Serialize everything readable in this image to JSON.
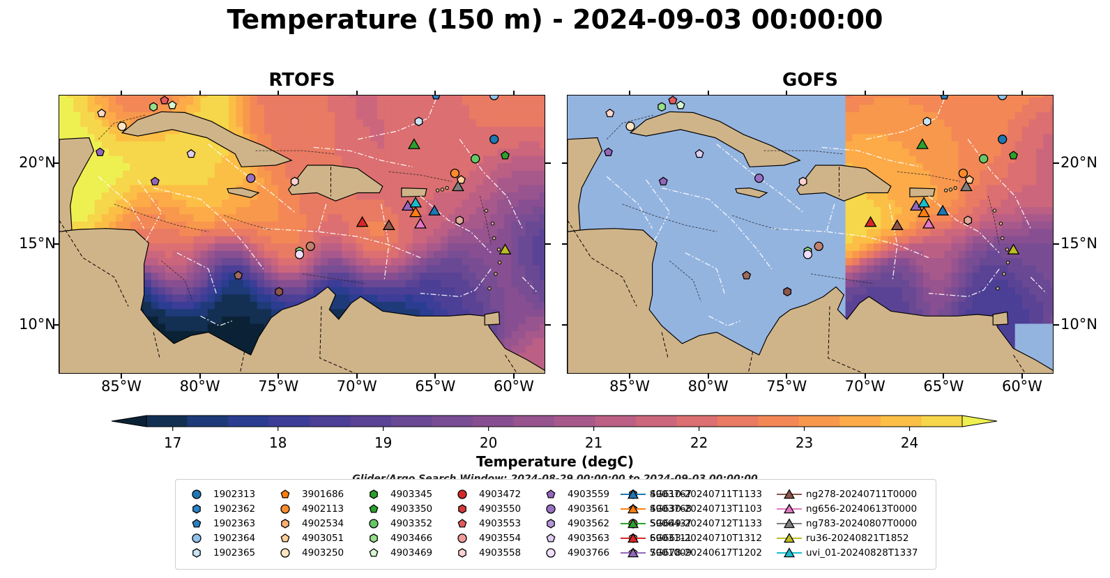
{
  "figure": {
    "title": "Temperature (150 m) - 2024-09-03 00:00:00",
    "search_window": "Glider/Argo Search Window: 2024-08-29 00:00:00 to 2024-09-03 00:00:00"
  },
  "chart_data": {
    "type": "heatmap",
    "panels": [
      {
        "title": "RTOFS",
        "xlim": [
          -89,
          -58
        ],
        "ylim": [
          7,
          24.2
        ]
      },
      {
        "title": "GOFS",
        "xlim": [
          -89,
          -58
        ],
        "ylim": [
          7,
          24.2
        ]
      }
    ],
    "x_ticks": [
      "85°W",
      "80°W",
      "75°W",
      "70°W",
      "65°W",
      "60°W"
    ],
    "x_tick_values": [
      -85,
      -80,
      -75,
      -70,
      -65,
      -60
    ],
    "y_ticks": [
      "20°N",
      "15°N",
      "10°N"
    ],
    "y_tick_values": [
      20,
      15,
      10
    ],
    "colorbar": {
      "label": "Temperature (degC)",
      "range": [
        16.75,
        24.5
      ],
      "ticks": [
        17,
        18,
        19,
        20,
        21,
        22,
        23,
        24
      ],
      "extend": "both",
      "colors": [
        "#0b2236",
        "#132f52",
        "#1e3a78",
        "#2a3d91",
        "#3c3d97",
        "#4b3f96",
        "#5a4395",
        "#694894",
        "#784d93",
        "#874f91",
        "#97548e",
        "#a8598b",
        "#bb5f85",
        "#cc667c",
        "#dc6f71",
        "#e97a63",
        "#f38856",
        "#f8984c",
        "#fcab48",
        "#fcbf46",
        "#f6d64a",
        "#eef052"
      ]
    },
    "colormap_note": "thermal",
    "land_color": "#d0b489",
    "ocean_nodata_color": "#94b4e0",
    "platforms": [
      {
        "name": "1902313",
        "marker": "circle",
        "color": "#1f77b4"
      },
      {
        "name": "1902362",
        "marker": "hexagon",
        "color": "#2a83c7"
      },
      {
        "name": "1902363",
        "marker": "pentagon",
        "color": "#2c7fbf"
      },
      {
        "name": "1902364",
        "marker": "circle",
        "color": "#8fc1ea"
      },
      {
        "name": "1902365",
        "marker": "hexagon",
        "color": "#c9e3f7"
      },
      {
        "name": "3901686",
        "marker": "pentagon",
        "color": "#ff7f0e"
      },
      {
        "name": "4902113",
        "marker": "circle",
        "color": "#ff8c2a"
      },
      {
        "name": "4902534",
        "marker": "hexagon",
        "color": "#ffb070"
      },
      {
        "name": "4903051",
        "marker": "pentagon",
        "color": "#ffcf9a"
      },
      {
        "name": "4903250",
        "marker": "circle",
        "color": "#ffe4c2"
      },
      {
        "name": "4903345",
        "marker": "hexagon",
        "color": "#2ca02c"
      },
      {
        "name": "4903350",
        "marker": "pentagon",
        "color": "#2ca02c"
      },
      {
        "name": "4903352",
        "marker": "circle",
        "color": "#67c767"
      },
      {
        "name": "4903466",
        "marker": "hexagon",
        "color": "#98df8a"
      },
      {
        "name": "4903469",
        "marker": "pentagon",
        "color": "#d8f5cf"
      },
      {
        "name": "4903472",
        "marker": "circle",
        "color": "#d62728"
      },
      {
        "name": "4903550",
        "marker": "hexagon",
        "color": "#d63a3b"
      },
      {
        "name": "4903553",
        "marker": "pentagon",
        "color": "#e35a5b"
      },
      {
        "name": "4903554",
        "marker": "circle",
        "color": "#f19a9a"
      },
      {
        "name": "4903558",
        "marker": "hexagon",
        "color": "#fcd2d2"
      },
      {
        "name": "4903559",
        "marker": "pentagon",
        "color": "#9467bd"
      },
      {
        "name": "4903561",
        "marker": "circle",
        "color": "#9a70c4"
      },
      {
        "name": "4903562",
        "marker": "hexagon",
        "color": "#b596d8"
      },
      {
        "name": "4903563",
        "marker": "pentagon",
        "color": "#e0cdf2"
      },
      {
        "name": "4903766",
        "marker": "circle",
        "color": "#f0defa"
      },
      {
        "name": "4903767",
        "marker": "hexagon",
        "color": "#8c564b"
      },
      {
        "name": "4903768",
        "marker": "pentagon",
        "color": "#a06a5c"
      },
      {
        "name": "5906437",
        "marker": "circle",
        "color": "#c0806e"
      },
      {
        "name": "6903111",
        "marker": "hexagon",
        "color": "#e0a898"
      },
      {
        "name": "7901009",
        "marker": "pentagon",
        "color": "#fcd9c9"
      }
    ],
    "gliders": [
      {
        "name": "SG610-20240711T1133",
        "color": "#1f77b4"
      },
      {
        "name": "SG630-20240713T1103",
        "color": "#ff7f0e"
      },
      {
        "name": "SG649-20240712T1133",
        "color": "#2ca02c"
      },
      {
        "name": "SG663-20240710T1312",
        "color": "#d62728"
      },
      {
        "name": "SG678-20240617T1202",
        "color": "#9467bd"
      },
      {
        "name": "ng278-20240711T0000",
        "color": "#8c564b"
      },
      {
        "name": "ng656-20240613T0000",
        "color": "#e377c2"
      },
      {
        "name": "ng783-20240807T0000",
        "color": "#7f7f7f"
      },
      {
        "name": "ru36-20240821T1852",
        "color": "#bcbd22"
      },
      {
        "name": "uvi_01-20240828T1337",
        "color": "#17becf"
      }
    ],
    "platform_positions": [
      {
        "name": "1902313",
        "lon": -61.3,
        "lat": 21.5
      },
      {
        "name": "1902364",
        "lon": -61.3,
        "lat": 24.2
      },
      {
        "name": "1902363",
        "lon": -65.0,
        "lat": 24.2
      },
      {
        "name": "1902365",
        "lon": -66.1,
        "lat": 22.6
      },
      {
        "name": "4903469",
        "lon": -81.8,
        "lat": 23.6
      },
      {
        "name": "4903466",
        "lon": -83.0,
        "lat": 23.5
      },
      {
        "name": "4903553",
        "lon": -82.3,
        "lat": 23.9
      },
      {
        "name": "7901009",
        "lon": -86.3,
        "lat": 23.1
      },
      {
        "name": "4903250",
        "lon": -85.0,
        "lat": 22.3
      },
      {
        "name": "4903559",
        "lon": -86.4,
        "lat": 20.7
      },
      {
        "name": "4903563",
        "lon": -80.6,
        "lat": 20.6
      },
      {
        "name": "4903559",
        "lon": -82.9,
        "lat": 18.9
      },
      {
        "name": "4903561",
        "lon": -76.8,
        "lat": 19.1
      },
      {
        "name": "4903558",
        "lon": -74.0,
        "lat": 18.9
      },
      {
        "name": "4903350",
        "lon": -60.6,
        "lat": 20.5
      },
      {
        "name": "4903352",
        "lon": -62.5,
        "lat": 20.3
      },
      {
        "name": "4902113",
        "lon": -63.8,
        "lat": 19.4
      },
      {
        "name": "4903051",
        "lon": -63.4,
        "lat": 19.0
      },
      {
        "name": "6903111",
        "lon": -63.5,
        "lat": 16.5
      },
      {
        "name": "4903466",
        "lon": -73.7,
        "lat": 14.6
      },
      {
        "name": "4903766",
        "lon": -73.7,
        "lat": 14.4
      },
      {
        "name": "5906437",
        "lon": -73.0,
        "lat": 14.9
      },
      {
        "name": "4903768",
        "lon": -77.6,
        "lat": 13.1
      },
      {
        "name": "4903767",
        "lon": -75.0,
        "lat": 12.1
      }
    ],
    "glider_positions": [
      {
        "name": "SG610-20240711T1133",
        "lon": -65.1,
        "lat": 17.1
      },
      {
        "name": "SG630-20240713T1103",
        "lon": -66.3,
        "lat": 17.0
      },
      {
        "name": "SG649-20240712T1133",
        "lon": -66.4,
        "lat": 21.2
      },
      {
        "name": "SG663-20240710T1312",
        "lon": -69.7,
        "lat": 16.4
      },
      {
        "name": "SG678-20240617T1202",
        "lon": -66.8,
        "lat": 17.4
      },
      {
        "name": "ng278-20240711T0000",
        "lon": -68.0,
        "lat": 16.2
      },
      {
        "name": "ng656-20240613T0000",
        "lon": -66.0,
        "lat": 16.3
      },
      {
        "name": "ng783-20240807T0000",
        "lon": -63.6,
        "lat": 18.6
      },
      {
        "name": "ru36-20240821T1852",
        "lon": -60.6,
        "lat": 14.7
      },
      {
        "name": "uvi_01-20240828T1337",
        "lon": -66.3,
        "lat": 17.6
      }
    ]
  }
}
